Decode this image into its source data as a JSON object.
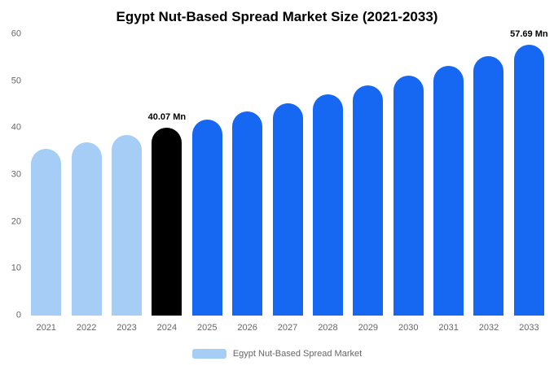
{
  "chart_data": {
    "type": "bar",
    "title": "Egypt Nut-Based Spread Market Size (2021-2033)",
    "categories": [
      "2021",
      "2022",
      "2023",
      "2024",
      "2025",
      "2026",
      "2027",
      "2028",
      "2029",
      "2030",
      "2031",
      "2032",
      "2033"
    ],
    "values": [
      35.5,
      36.96,
      38.49,
      40.07,
      41.72,
      43.45,
      45.24,
      47.11,
      49.05,
      51.08,
      53.19,
      55.38,
      57.69
    ],
    "unit": "Mn",
    "ylim": [
      0,
      60
    ],
    "yticks": [
      0,
      10,
      20,
      30,
      40,
      50,
      60
    ],
    "grid": false,
    "colors": {
      "historical": "#a5cdf6",
      "base_year": "#000000",
      "forecast": "#1667f1"
    },
    "bar_colors": [
      "#a5cdf6",
      "#a5cdf6",
      "#a5cdf6",
      "#000000",
      "#1667f1",
      "#1667f1",
      "#1667f1",
      "#1667f1",
      "#1667f1",
      "#1667f1",
      "#1667f1",
      "#1667f1",
      "#1667f1"
    ],
    "annotations": [
      {
        "category": "2024",
        "text": "40.07 Mn"
      },
      {
        "category": "2033",
        "text": "57.69 Mn"
      }
    ],
    "legend": {
      "label": "Egypt Nut-Based Spread Market",
      "position": "bottom",
      "swatch_color": "#a5cdf6"
    }
  }
}
